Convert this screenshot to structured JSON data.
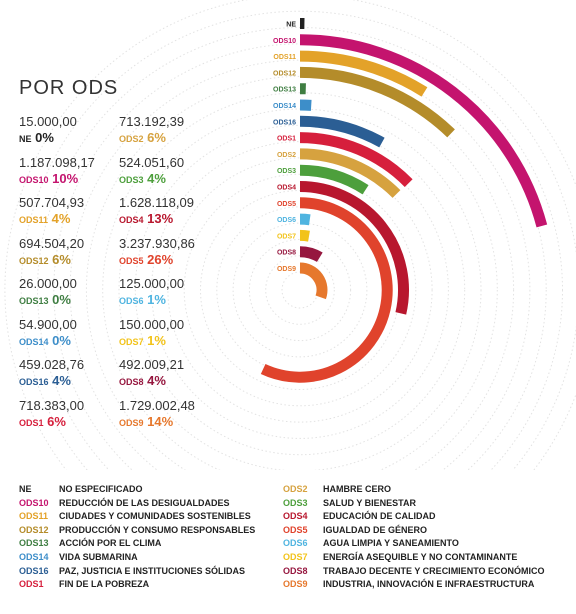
{
  "section_title": "POR ODS",
  "chart_data": {
    "type": "radial-bar",
    "title": "",
    "rings": [
      {
        "code": "NE",
        "value": 15000.0,
        "pct": 0,
        "color": "#222222"
      },
      {
        "code": "ODS10",
        "value": 1187098.17,
        "pct": 10,
        "color": "#c4146e"
      },
      {
        "code": "ODS11",
        "value": 507704.93,
        "pct": 4,
        "color": "#e3a229"
      },
      {
        "code": "ODS12",
        "value": 694504.2,
        "pct": 6,
        "color": "#b48c2a"
      },
      {
        "code": "ODS13",
        "value": 26000.0,
        "pct": 0,
        "color": "#3f7e42"
      },
      {
        "code": "ODS14",
        "value": 54900.0,
        "pct": 0,
        "color": "#3d8ec9"
      },
      {
        "code": "ODS16",
        "value": 459028.76,
        "pct": 4,
        "color": "#2b5e94"
      },
      {
        "code": "ODS1",
        "value": 718383.0,
        "pct": 6,
        "color": "#d61f3c"
      },
      {
        "code": "ODS2",
        "value": 713192.39,
        "pct": 6,
        "color": "#d6a23f"
      },
      {
        "code": "ODS3",
        "value": 524051.6,
        "pct": 4,
        "color": "#4d9f3c"
      },
      {
        "code": "ODS4",
        "value": 1628118.09,
        "pct": 13,
        "color": "#b8172e"
      },
      {
        "code": "ODS5",
        "value": 3237930.86,
        "pct": 26,
        "color": "#e0432c"
      },
      {
        "code": "ODS6",
        "value": 125000.0,
        "pct": 1,
        "color": "#4fb4e0"
      },
      {
        "code": "ODS7",
        "value": 150000.0,
        "pct": 1,
        "color": "#f2c31a"
      },
      {
        "code": "ODS8",
        "value": 492009.21,
        "pct": 4,
        "color": "#96173f"
      },
      {
        "code": "ODS9",
        "value": 1729002.48,
        "pct": 14,
        "color": "#e6782d"
      }
    ]
  },
  "stats_left": [
    {
      "amount": "15.000,00",
      "code": "NE",
      "pct": "0%",
      "color": "#222222"
    },
    {
      "amount": "1.187.098,17",
      "code": "ODS10",
      "pct": "10%",
      "color": "#c4146e"
    },
    {
      "amount": "507.704,93",
      "code": "ODS11",
      "pct": "4%",
      "color": "#e3a229"
    },
    {
      "amount": "694.504,20",
      "code": "ODS12",
      "pct": "6%",
      "color": "#b48c2a"
    },
    {
      "amount": "26.000,00",
      "code": "ODS13",
      "pct": "0%",
      "color": "#3f7e42"
    },
    {
      "amount": "54.900,00",
      "code": "ODS14",
      "pct": "0%",
      "color": "#3d8ec9"
    },
    {
      "amount": "459.028,76",
      "code": "ODS16",
      "pct": "4%",
      "color": "#2b5e94"
    },
    {
      "amount": "718.383,00",
      "code": "ODS1",
      "pct": "6%",
      "color": "#d61f3c"
    }
  ],
  "stats_right": [
    {
      "amount": "713.192,39",
      "code": "ODS2",
      "pct": "6%",
      "color": "#d6a23f"
    },
    {
      "amount": "524.051,60",
      "code": "ODS3",
      "pct": "4%",
      "color": "#4d9f3c"
    },
    {
      "amount": "1.628.118,09",
      "code": "ODS4",
      "pct": "13%",
      "color": "#b8172e"
    },
    {
      "amount": "3.237.930,86",
      "code": "ODS5",
      "pct": "26%",
      "color": "#e0432c"
    },
    {
      "amount": "125.000,00",
      "code": "ODS6",
      "pct": "1%",
      "color": "#4fb4e0"
    },
    {
      "amount": "150.000,00",
      "code": "ODS7",
      "pct": "1%",
      "color": "#f2c31a"
    },
    {
      "amount": "492.009,21",
      "code": "ODS8",
      "pct": "4%",
      "color": "#96173f"
    },
    {
      "amount": "1.729.002,48",
      "code": "ODS9",
      "pct": "14%",
      "color": "#e6782d"
    }
  ],
  "legend_left": [
    {
      "code": "NE",
      "name": "NO ESPECIFICADO",
      "color": "#222222"
    },
    {
      "code": "ODS10",
      "name": "REDUCCIÓN DE LAS DESIGUALDADES",
      "color": "#c4146e"
    },
    {
      "code": "ODS11",
      "name": "CIUDADES Y COMUNIDADES SOSTENIBLES",
      "color": "#e3a229"
    },
    {
      "code": "ODS12",
      "name": "PRODUCCIÓN Y CONSUMO RESPONSABLES",
      "color": "#b48c2a"
    },
    {
      "code": "ODS13",
      "name": "ACCIÓN POR EL CLIMA",
      "color": "#3f7e42"
    },
    {
      "code": "ODS14",
      "name": "VIDA SUBMARINA",
      "color": "#3d8ec9"
    },
    {
      "code": "ODS16",
      "name": "PAZ, JUSTICIA E INSTITUCIONES SÓLIDAS",
      "color": "#2b5e94"
    },
    {
      "code": "ODS1",
      "name": "FIN DE LA POBREZA",
      "color": "#d61f3c"
    }
  ],
  "legend_right": [
    {
      "code": "ODS2",
      "name": "HAMBRE CERO",
      "color": "#d6a23f"
    },
    {
      "code": "ODS3",
      "name": "SALUD Y BIENESTAR",
      "color": "#4d9f3c"
    },
    {
      "code": "ODS4",
      "name": "EDUCACIÓN DE CALIDAD",
      "color": "#b8172e"
    },
    {
      "code": "ODS5",
      "name": "IGUALDAD DE GÉNERO",
      "color": "#e0432c"
    },
    {
      "code": "ODS6",
      "name": "AGUA LIMPIA Y SANEAMIENTO",
      "color": "#4fb4e0"
    },
    {
      "code": "ODS7",
      "name": "ENERGÍA ASEQUIBLE Y NO CONTAMINANTE",
      "color": "#f2c31a"
    },
    {
      "code": "ODS8",
      "name": "TRABAJO DECENTE Y CRECIMIENTO ECONÓMICO",
      "color": "#96173f"
    },
    {
      "code": "ODS9",
      "name": "INDUSTRIA, INNOVACIÓN E INFRAESTRUCTURA",
      "color": "#e6782d"
    }
  ]
}
